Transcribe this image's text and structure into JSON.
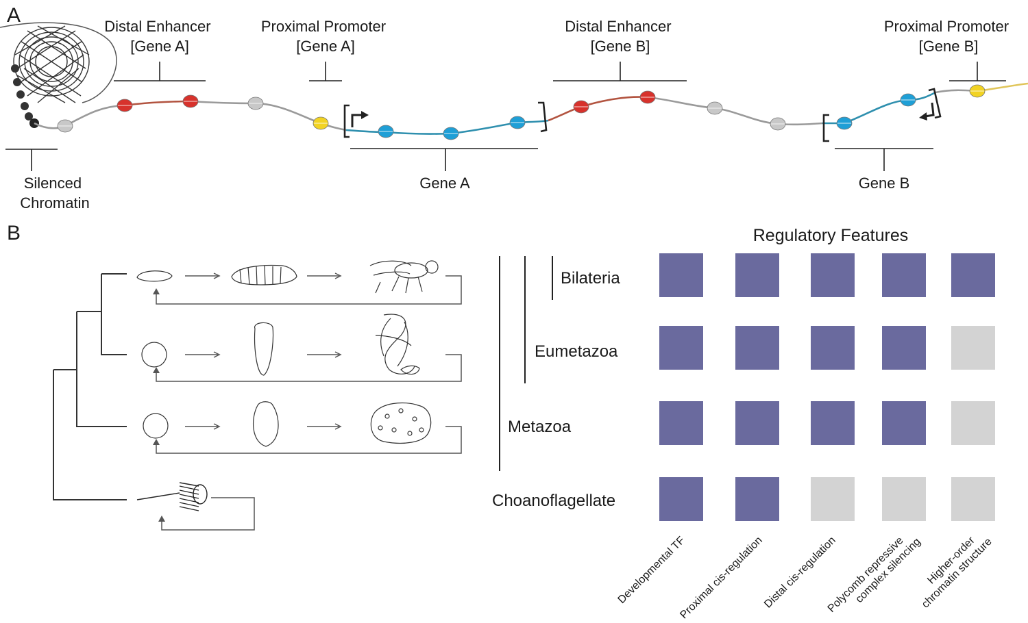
{
  "panel_a": {
    "letter": "A",
    "labels": {
      "distal_enhancer_a": [
        "Distal Enhancer",
        "[Gene A]"
      ],
      "proximal_promoter_a": [
        "Proximal Promoter",
        "[Gene A]"
      ],
      "distal_enhancer_b": [
        "Distal Enhancer",
        "[Gene B]"
      ],
      "proximal_promoter_b": [
        "Proximal Promoter",
        "[Gene B]"
      ],
      "silenced_chromatin": [
        "Silenced",
        "Chromatin"
      ],
      "gene_a": "Gene A",
      "gene_b": "Gene B"
    },
    "colors": {
      "enhancer": "#d7322c",
      "promoter": "#f2d323",
      "gene": "#1f9fd6",
      "nucleosome": "#c8c8c8",
      "silenced": "#222222"
    }
  },
  "panel_b": {
    "letter": "B",
    "title": "Regulatory Features",
    "features": [
      "Developmental TF",
      "Proximal cis-regulation",
      "Distal cis-regulation",
      [
        "Polycomb repressive",
        "complex silencing"
      ],
      [
        "Higher-order",
        "chromatin structure"
      ]
    ],
    "clades": [
      "Bilateria",
      "Eumetazoa",
      "Metazoa",
      "Choanoflagellate"
    ],
    "presence": [
      [
        1,
        1,
        1,
        1,
        1
      ],
      [
        1,
        1,
        1,
        1,
        0
      ],
      [
        1,
        1,
        1,
        1,
        0
      ],
      [
        1,
        1,
        0,
        0,
        0
      ]
    ],
    "colors": {
      "present": "#6a6a9e",
      "absent": "#d3d3d3"
    }
  }
}
